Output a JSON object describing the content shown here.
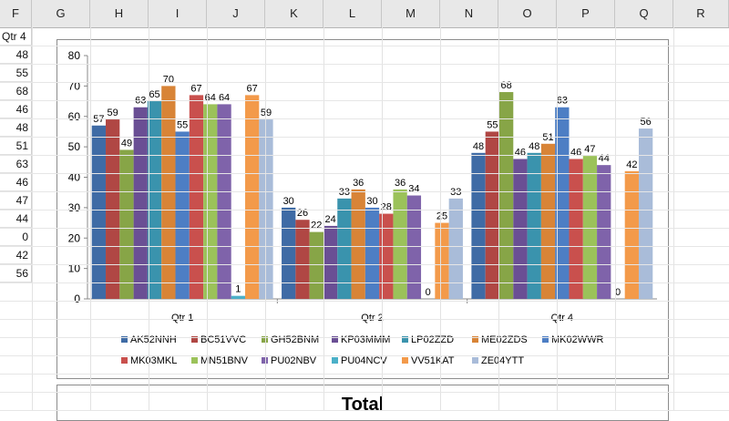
{
  "spreadsheet": {
    "columns": [
      "F",
      "G",
      "H",
      "I",
      "J",
      "K",
      "L",
      "M",
      "N",
      "O",
      "P",
      "Q",
      "R"
    ],
    "column_f_header_value": "Qtr 4",
    "column_f_values": [
      "48",
      "55",
      "68",
      "46",
      "48",
      "51",
      "63",
      "46",
      "47",
      "44",
      "0",
      "42",
      "56"
    ]
  },
  "chart_data": {
    "type": "bar",
    "categories": [
      "Qtr 1",
      "Qtr 2",
      "Qtr 4"
    ],
    "ylim": [
      0,
      80
    ],
    "yticks": [
      0,
      10,
      20,
      30,
      40,
      50,
      60,
      70,
      80
    ],
    "legend_position": "bottom",
    "series": [
      {
        "name": "AK52NNH",
        "color": "#3f6ba5",
        "values": [
          57,
          30,
          48
        ]
      },
      {
        "name": "BC51VVC",
        "color": "#b04744",
        "values": [
          59,
          26,
          55
        ]
      },
      {
        "name": "GH52BNM",
        "color": "#87a547",
        "values": [
          49,
          22,
          68
        ]
      },
      {
        "name": "KP03MMM",
        "color": "#6a4f94",
        "values": [
          63,
          24,
          46
        ]
      },
      {
        "name": "LP02ZZD",
        "color": "#3a93ad",
        "values": [
          65,
          33,
          48
        ]
      },
      {
        "name": "ME02ZDS",
        "color": "#d88437",
        "values": [
          70,
          36,
          51
        ]
      },
      {
        "name": "MK02WWR",
        "color": "#4d7ec4",
        "values": [
          55,
          30,
          63
        ]
      },
      {
        "name": "MK03MKL",
        "color": "#c9504d",
        "values": [
          67,
          28,
          46
        ]
      },
      {
        "name": "MN51BNV",
        "color": "#9bc25a",
        "values": [
          64,
          36,
          47
        ]
      },
      {
        "name": "PU02NBV",
        "color": "#7f63aa",
        "values": [
          64,
          34,
          44
        ]
      },
      {
        "name": "PU04NCV",
        "color": "#4bb0c8",
        "values": [
          1,
          0,
          0
        ]
      },
      {
        "name": "VV51KAT",
        "color": "#f39a4a",
        "values": [
          67,
          25,
          42
        ]
      },
      {
        "name": "ZE04YTT",
        "color": "#a9bcd9",
        "values": [
          59,
          33,
          56
        ]
      }
    ]
  },
  "second_chart": {
    "title": "Total"
  }
}
